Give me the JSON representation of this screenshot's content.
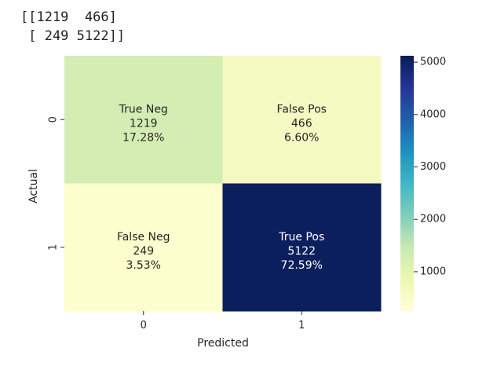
{
  "output": {
    "line1": "[[1219  466]",
    "line2": " [ 249 5122]]"
  },
  "chart_data": {
    "type": "heatmap",
    "title": "",
    "xlabel": "Predicted",
    "ylabel": "Actual",
    "x_categories": [
      "0",
      "1"
    ],
    "y_categories": [
      "0",
      "1"
    ],
    "values": [
      [
        1219,
        466
      ],
      [
        249,
        5122
      ]
    ],
    "cell_labels": [
      [
        [
          "True Neg",
          "1219",
          "17.28%"
        ],
        [
          "False Pos",
          "466",
          "6.60%"
        ]
      ],
      [
        [
          "False Neg",
          "249",
          "3.53%"
        ],
        [
          "True Pos",
          "5122",
          "72.59%"
        ]
      ]
    ],
    "colormap": "YlGnBu",
    "vmin": 249,
    "vmax": 5122,
    "colorbar_ticks": [
      1000,
      2000,
      3000,
      4000,
      5000
    ],
    "colors": {
      "cell_00": "#d4edb3",
      "cell_01": "#f4fac1",
      "cell_10": "#fcfecd",
      "cell_11": "#0c1f5d",
      "text_dark": "#262626",
      "text_light": "#ffffff"
    },
    "colorbar_stops": [
      "#ffffd9",
      "#edf8b1",
      "#c7e9b4",
      "#7fcdbb",
      "#41b6c4",
      "#1d91c0",
      "#225ea8",
      "#253494",
      "#081d58"
    ]
  }
}
